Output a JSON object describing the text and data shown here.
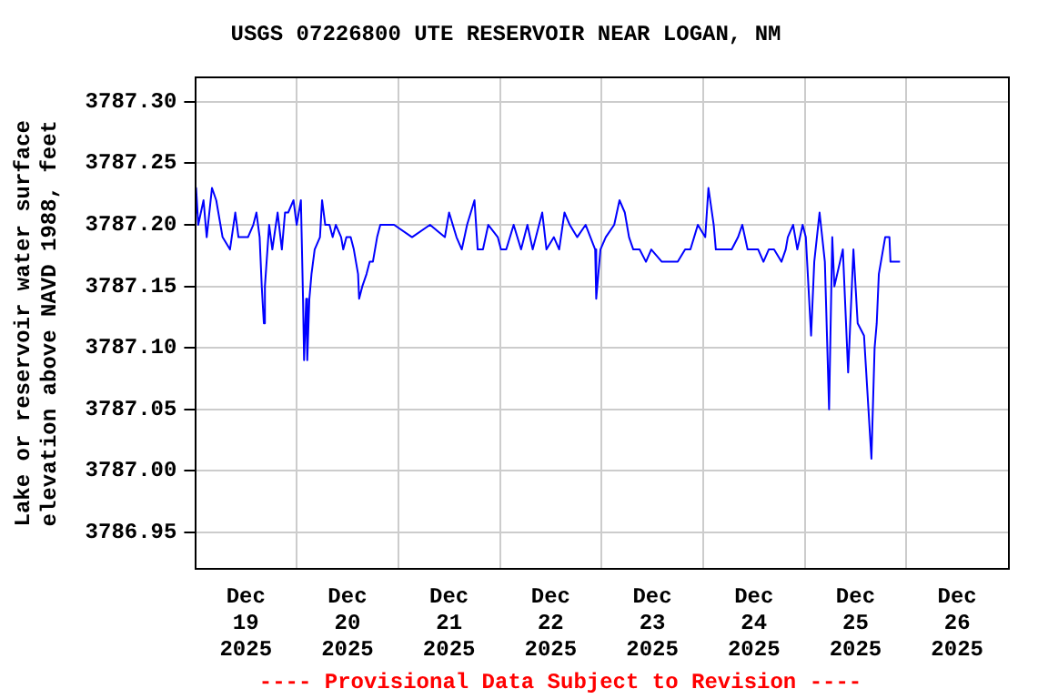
{
  "chart_data": {
    "type": "line",
    "title": "USGS 07226800 UTE RESERVOIR NEAR LOGAN, NM",
    "ylabel": "Lake or reservoir water surface\nelevation above NAVD 1988, feet",
    "annotations": [
      "---- Provisional Data Subject to Revision ----"
    ],
    "x": [
      "2025-12-19T00:00",
      "2025-12-19T00:15",
      "2025-12-19T00:45",
      "2025-12-19T02:00",
      "2025-12-19T02:45",
      "2025-12-19T04:00",
      "2025-12-19T05:00",
      "2025-12-19T06:30",
      "2025-12-19T08:15",
      "2025-12-19T09:30",
      "2025-12-19T10:15",
      "2025-12-19T12:30",
      "2025-12-19T13:45",
      "2025-12-19T14:30",
      "2025-12-19T15:15",
      "2025-12-19T15:45",
      "2025-12-19T16:15",
      "2025-12-19T16:30",
      "2025-12-19T17:30",
      "2025-12-19T18:15",
      "2025-12-19T19:30",
      "2025-12-19T20:30",
      "2025-12-19T21:15",
      "2025-12-19T22:00",
      "2025-12-19T23:15",
      "2025-12-20T00:00",
      "2025-12-20T01:00",
      "2025-12-20T01:30",
      "2025-12-20T01:45",
      "2025-12-20T02:15",
      "2025-12-20T02:30",
      "2025-12-20T03:00",
      "2025-12-20T03:30",
      "2025-12-20T04:15",
      "2025-12-20T05:30",
      "2025-12-20T06:00",
      "2025-12-20T06:45",
      "2025-12-20T07:45",
      "2025-12-20T08:30",
      "2025-12-20T09:15",
      "2025-12-20T10:30",
      "2025-12-20T11:00",
      "2025-12-20T11:45",
      "2025-12-20T12:45",
      "2025-12-20T13:30",
      "2025-12-20T14:30",
      "2025-12-20T14:45",
      "2025-12-20T15:30",
      "2025-12-20T16:30",
      "2025-12-20T17:15",
      "2025-12-20T18:00",
      "2025-12-20T19:00",
      "2025-12-20T19:45",
      "2025-12-20T23:00",
      "2025-12-21T03:15",
      "2025-12-21T07:30",
      "2025-12-21T11:00",
      "2025-12-21T12:00",
      "2025-12-21T13:45",
      "2025-12-21T15:00",
      "2025-12-21T16:15",
      "2025-12-21T18:00",
      "2025-12-21T18:45",
      "2025-12-21T20:00",
      "2025-12-21T21:15",
      "2025-12-21T23:30",
      "2025-12-22T00:15",
      "2025-12-22T01:30",
      "2025-12-22T03:15",
      "2025-12-22T05:00",
      "2025-12-22T06:30",
      "2025-12-22T07:45",
      "2025-12-22T10:00",
      "2025-12-22T11:00",
      "2025-12-22T12:45",
      "2025-12-22T14:00",
      "2025-12-22T15:15",
      "2025-12-22T16:30",
      "2025-12-22T18:15",
      "2025-12-22T20:15",
      "2025-12-22T22:30",
      "2025-12-22T22:45",
      "2025-12-22T23:45",
      "2025-12-23T01:00",
      "2025-12-23T03:00",
      "2025-12-23T04:15",
      "2025-12-23T05:30",
      "2025-12-23T06:30",
      "2025-12-23T07:30",
      "2025-12-23T09:00",
      "2025-12-23T10:30",
      "2025-12-23T11:45",
      "2025-12-23T14:15",
      "2025-12-23T16:00",
      "2025-12-23T18:00",
      "2025-12-23T19:45",
      "2025-12-23T21:00",
      "2025-12-23T22:45",
      "2025-12-24T00:30",
      "2025-12-24T01:15",
      "2025-12-24T02:30",
      "2025-12-24T03:00",
      "2025-12-24T05:30",
      "2025-12-24T06:45",
      "2025-12-24T08:15",
      "2025-12-24T09:15",
      "2025-12-24T10:30",
      "2025-12-24T11:45",
      "2025-12-24T13:00",
      "2025-12-24T14:15",
      "2025-12-24T15:30",
      "2025-12-24T16:45",
      "2025-12-24T18:30",
      "2025-12-24T19:30",
      "2025-12-24T20:00",
      "2025-12-24T21:15",
      "2025-12-24T22:15",
      "2025-12-24T23:30",
      "2025-12-25T00:15",
      "2025-12-25T01:30",
      "2025-12-25T02:15",
      "2025-12-25T03:30",
      "2025-12-25T04:45",
      "2025-12-25T05:45",
      "2025-12-25T06:30",
      "2025-12-25T07:00",
      "2025-12-25T09:00",
      "2025-12-25T10:15",
      "2025-12-25T10:45",
      "2025-12-25T11:30",
      "2025-12-25T12:30",
      "2025-12-25T14:00",
      "2025-12-25T15:45",
      "2025-12-25T16:30",
      "2025-12-25T17:00",
      "2025-12-25T17:30",
      "2025-12-25T19:00",
      "2025-12-25T20:00",
      "2025-12-25T20:15",
      "2025-12-25T22:30"
    ],
    "values": [
      3787.21,
      3787.23,
      3787.2,
      3787.22,
      3787.19,
      3787.23,
      3787.22,
      3787.19,
      3787.18,
      3787.21,
      3787.19,
      3787.19,
      3787.2,
      3787.21,
      3787.19,
      3787.15,
      3787.12,
      3787.15,
      3787.2,
      3787.18,
      3787.21,
      3787.18,
      3787.21,
      3787.21,
      3787.22,
      3787.2,
      3787.22,
      3787.14,
      3787.09,
      3787.14,
      3787.09,
      3787.14,
      3787.16,
      3787.18,
      3787.19,
      3787.22,
      3787.2,
      3787.2,
      3787.19,
      3787.2,
      3787.19,
      3787.18,
      3787.19,
      3787.19,
      3787.18,
      3787.16,
      3787.14,
      3787.15,
      3787.16,
      3787.17,
      3787.17,
      3787.19,
      3787.2,
      3787.2,
      3787.19,
      3787.2,
      3787.19,
      3787.21,
      3787.19,
      3787.18,
      3787.2,
      3787.22,
      3787.18,
      3787.18,
      3787.2,
      3787.19,
      3787.18,
      3787.18,
      3787.2,
      3787.18,
      3787.2,
      3787.18,
      3787.21,
      3787.18,
      3787.19,
      3787.18,
      3787.21,
      3787.2,
      3787.19,
      3787.2,
      3787.18,
      3787.14,
      3787.18,
      3787.19,
      3787.2,
      3787.22,
      3787.21,
      3787.19,
      3787.18,
      3787.18,
      3787.17,
      3787.18,
      3787.17,
      3787.17,
      3787.17,
      3787.18,
      3787.18,
      3787.2,
      3787.19,
      3787.23,
      3787.2,
      3787.18,
      3787.18,
      3787.18,
      3787.19,
      3787.2,
      3787.18,
      3787.18,
      3787.18,
      3787.17,
      3787.18,
      3787.18,
      3787.17,
      3787.18,
      3787.19,
      3787.2,
      3787.18,
      3787.2,
      3787.19,
      3787.11,
      3787.17,
      3787.21,
      3787.17,
      3787.05,
      3787.19,
      3787.15,
      3787.18,
      3787.08,
      3787.12,
      3787.18,
      3787.12,
      3787.11,
      3787.01,
      3787.1,
      3787.12,
      3787.16,
      3787.19,
      3787.19,
      3787.17,
      3787.17
    ],
    "color": "#0000ff",
    "xlim": [
      "2025-12-19T00:00",
      "2025-12-27T00:00"
    ],
    "xticks": [
      {
        "value": "2025-12-19T12:00",
        "label": "Dec\n19\n2025"
      },
      {
        "value": "2025-12-20T12:00",
        "label": "Dec\n20\n2025"
      },
      {
        "value": "2025-12-21T12:00",
        "label": "Dec\n21\n2025"
      },
      {
        "value": "2025-12-22T12:00",
        "label": "Dec\n22\n2025"
      },
      {
        "value": "2025-12-23T12:00",
        "label": "Dec\n23\n2025"
      },
      {
        "value": "2025-12-24T12:00",
        "label": "Dec\n24\n2025"
      },
      {
        "value": "2025-12-25T12:00",
        "label": "Dec\n25\n2025"
      },
      {
        "value": "2025-12-26T12:00",
        "label": "Dec\n26\n2025"
      },
      {
        "value": "2025-12-20T00:00",
        "label": null
      },
      {
        "value": "2025-12-21T00:00",
        "label": null
      },
      {
        "value": "2025-12-22T00:00",
        "label": null
      },
      {
        "value": "2025-12-23T00:00",
        "label": null
      },
      {
        "value": "2025-12-24T00:00",
        "label": null
      },
      {
        "value": "2025-12-25T00:00",
        "label": null
      },
      {
        "value": "2025-12-26T00:00",
        "label": null
      }
    ],
    "ylim": [
      3786.92,
      3787.32
    ],
    "yticks": [
      {
        "value": 3786.95,
        "label": "3786.95"
      },
      {
        "value": 3787.0,
        "label": "3787.00"
      },
      {
        "value": 3787.05,
        "label": "3787.05"
      },
      {
        "value": 3787.1,
        "label": "3787.10"
      },
      {
        "value": 3787.15,
        "label": "3787.15"
      },
      {
        "value": 3787.2,
        "label": "3787.20"
      },
      {
        "value": 3787.25,
        "label": "3787.25"
      },
      {
        "value": 3787.3,
        "label": "3787.30"
      }
    ],
    "grid": true,
    "line_style": "solid",
    "marker": "none"
  }
}
